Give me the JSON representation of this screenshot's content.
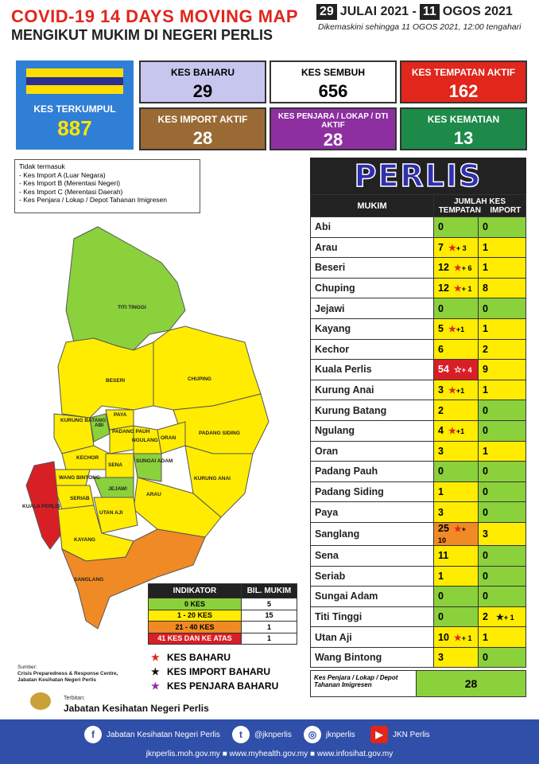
{
  "header": {
    "title_line1": "COVID-19 14 DAYS MOVING MAP",
    "title_line2": "MENGIKUT MUKIM DI NEGERI PERLIS",
    "date_start_day": "29",
    "date_start_rest": "JULAI 2021 -",
    "date_end_day": "11",
    "date_end_rest": "OGOS 2021",
    "updated": "Dikemaskini sehingga  11 OGOS  2021, 12:00 tengahari"
  },
  "cards": {
    "total": {
      "label": "KES TERKUMPUL",
      "value": "887"
    },
    "baharu": {
      "label": "KES BAHARU",
      "value": "29"
    },
    "sembuh": {
      "label": "KES SEMBUH",
      "value": "656"
    },
    "tempatan": {
      "label": "KES TEMPATAN AKTIF",
      "value": "162"
    },
    "import": {
      "label": "KES IMPORT AKTIF",
      "value": "28"
    },
    "penjara": {
      "label": "KES PENJARA / LOKAP / DTI AKTIF",
      "value": "28"
    },
    "kematian": {
      "label": "KES KEMATIAN",
      "value": "13"
    }
  },
  "note": {
    "title": "Tidak termasuk",
    "items": [
      "- Kes Import A (Luar Negara)",
      "- Kes Import B (Merentasi Negeri)",
      "- Kes Import C (Merentasi Daerah)",
      "- Kes Penjara / Lokap / Depot Tahanan Imigresen"
    ]
  },
  "map": {
    "labels": [
      "TITI TINGGI",
      "BESERI",
      "CHUPING",
      "KURUNG BATANG",
      "ABI",
      "PAYA",
      "PADANG PAUH",
      "NGULANG",
      "ORAN",
      "PADANG SIDING",
      "KECHOR",
      "WANG BINTONG",
      "SENA",
      "SUNGAI ADAM",
      "SERIAB",
      "JEJAWI",
      "KURUNG ANAI",
      "ARAU",
      "UTAN AJI",
      "KUALA PERLIS",
      "KAYANG",
      "SANGLANG"
    ]
  },
  "legend": {
    "col1": "INDIKATOR",
    "col2": "BIL. MUKIM",
    "rows": [
      {
        "label": "0 KES",
        "count": "5",
        "color": "#8bd13c"
      },
      {
        "label": "1 - 20 KES",
        "count": "15",
        "color": "#ffec00"
      },
      {
        "label": "21 - 40 KES",
        "count": "1",
        "color": "#f08a24"
      },
      {
        "label": "41 KES DAN KE ATAS",
        "count": "1",
        "color": "#d81f26"
      }
    ]
  },
  "keys": {
    "red": "KES BAHARU",
    "black": "KES IMPORT BAHARU",
    "purple": "KES PENJARA BAHARU"
  },
  "source": {
    "label": "Sumber:",
    "line1": "Crisis Preparedness & Response Centre,",
    "line2": "Jabatan Kesihatan Negeri Perlis"
  },
  "terbitan": {
    "label": "Terbitan:",
    "name": "Jabatan Kesihatan Negeri Perlis"
  },
  "table": {
    "banner": "PERLIS",
    "col_mukim": "MUKIM",
    "col_jumlah": "JUMLAH KES",
    "col_tempatan": "TEMPATAN",
    "col_import": "IMPORT",
    "rows": [
      {
        "name": "Abi",
        "tempatan": "0",
        "new": "",
        "import": "0",
        "imp_new": ""
      },
      {
        "name": "Arau",
        "tempatan": "7",
        "new": "+ 3",
        "import": "1",
        "imp_new": ""
      },
      {
        "name": "Beseri",
        "tempatan": "12",
        "new": "+ 6",
        "import": "1",
        "imp_new": ""
      },
      {
        "name": "Chuping",
        "tempatan": "12",
        "new": "+ 1",
        "import": "8",
        "imp_new": ""
      },
      {
        "name": "Jejawi",
        "tempatan": "0",
        "new": "",
        "import": "0",
        "imp_new": ""
      },
      {
        "name": "Kayang",
        "tempatan": "5",
        "new": "+1",
        "import": "1",
        "imp_new": ""
      },
      {
        "name": "Kechor",
        "tempatan": "6",
        "new": "",
        "import": "2",
        "imp_new": ""
      },
      {
        "name": "Kuala Perlis",
        "tempatan": "54",
        "new": "+ 4",
        "import": "9",
        "imp_new": ""
      },
      {
        "name": "Kurung Anai",
        "tempatan": "3",
        "new": "+1",
        "import": "1",
        "imp_new": ""
      },
      {
        "name": "Kurung Batang",
        "tempatan": "2",
        "new": "",
        "import": "0",
        "imp_new": ""
      },
      {
        "name": "Ngulang",
        "tempatan": "4",
        "new": "+1",
        "import": "0",
        "imp_new": ""
      },
      {
        "name": "Oran",
        "tempatan": "3",
        "new": "",
        "import": "1",
        "imp_new": ""
      },
      {
        "name": "Padang Pauh",
        "tempatan": "0",
        "new": "",
        "import": "0",
        "imp_new": ""
      },
      {
        "name": "Padang Siding",
        "tempatan": "1",
        "new": "",
        "import": "0",
        "imp_new": ""
      },
      {
        "name": "Paya",
        "tempatan": "3",
        "new": "",
        "import": "0",
        "imp_new": ""
      },
      {
        "name": "Sanglang",
        "tempatan": "25",
        "new": "+ 10",
        "import": "3",
        "imp_new": ""
      },
      {
        "name": "Sena",
        "tempatan": "11",
        "new": "",
        "import": "0",
        "imp_new": ""
      },
      {
        "name": "Seriab",
        "tempatan": "1",
        "new": "",
        "import": "0",
        "imp_new": ""
      },
      {
        "name": "Sungai Adam",
        "tempatan": "0",
        "new": "",
        "import": "0",
        "imp_new": ""
      },
      {
        "name": "Titi Tinggi",
        "tempatan": "0",
        "new": "",
        "import": "2",
        "imp_new": "+ 1"
      },
      {
        "name": "Utan Aji",
        "tempatan": "10",
        "new": "+ 1",
        "import": "1",
        "imp_new": ""
      },
      {
        "name": "Wang Bintong",
        "tempatan": "3",
        "new": "",
        "import": "0",
        "imp_new": ""
      }
    ],
    "penjara_label": "Kes Penjara / Lokap / Depot Tahanan Imigresen",
    "penjara_value": "28"
  },
  "footer": {
    "facebook": "Jabatan Kesihatan Negeri Perlis",
    "twitter": "@jknperlis",
    "instagram": "jknperlis",
    "youtube": "JKN Perlis",
    "links": "jknperlis.moh.gov.my ■ www.myhealth.gov.my ■ www.infosihat.gov.my"
  },
  "colors": {
    "green": "#8bd13c",
    "yellow": "#ffec00",
    "orange": "#f08a24",
    "red": "#d81f26",
    "blue": "#2f7fd6",
    "footer": "#2f4fa8"
  }
}
